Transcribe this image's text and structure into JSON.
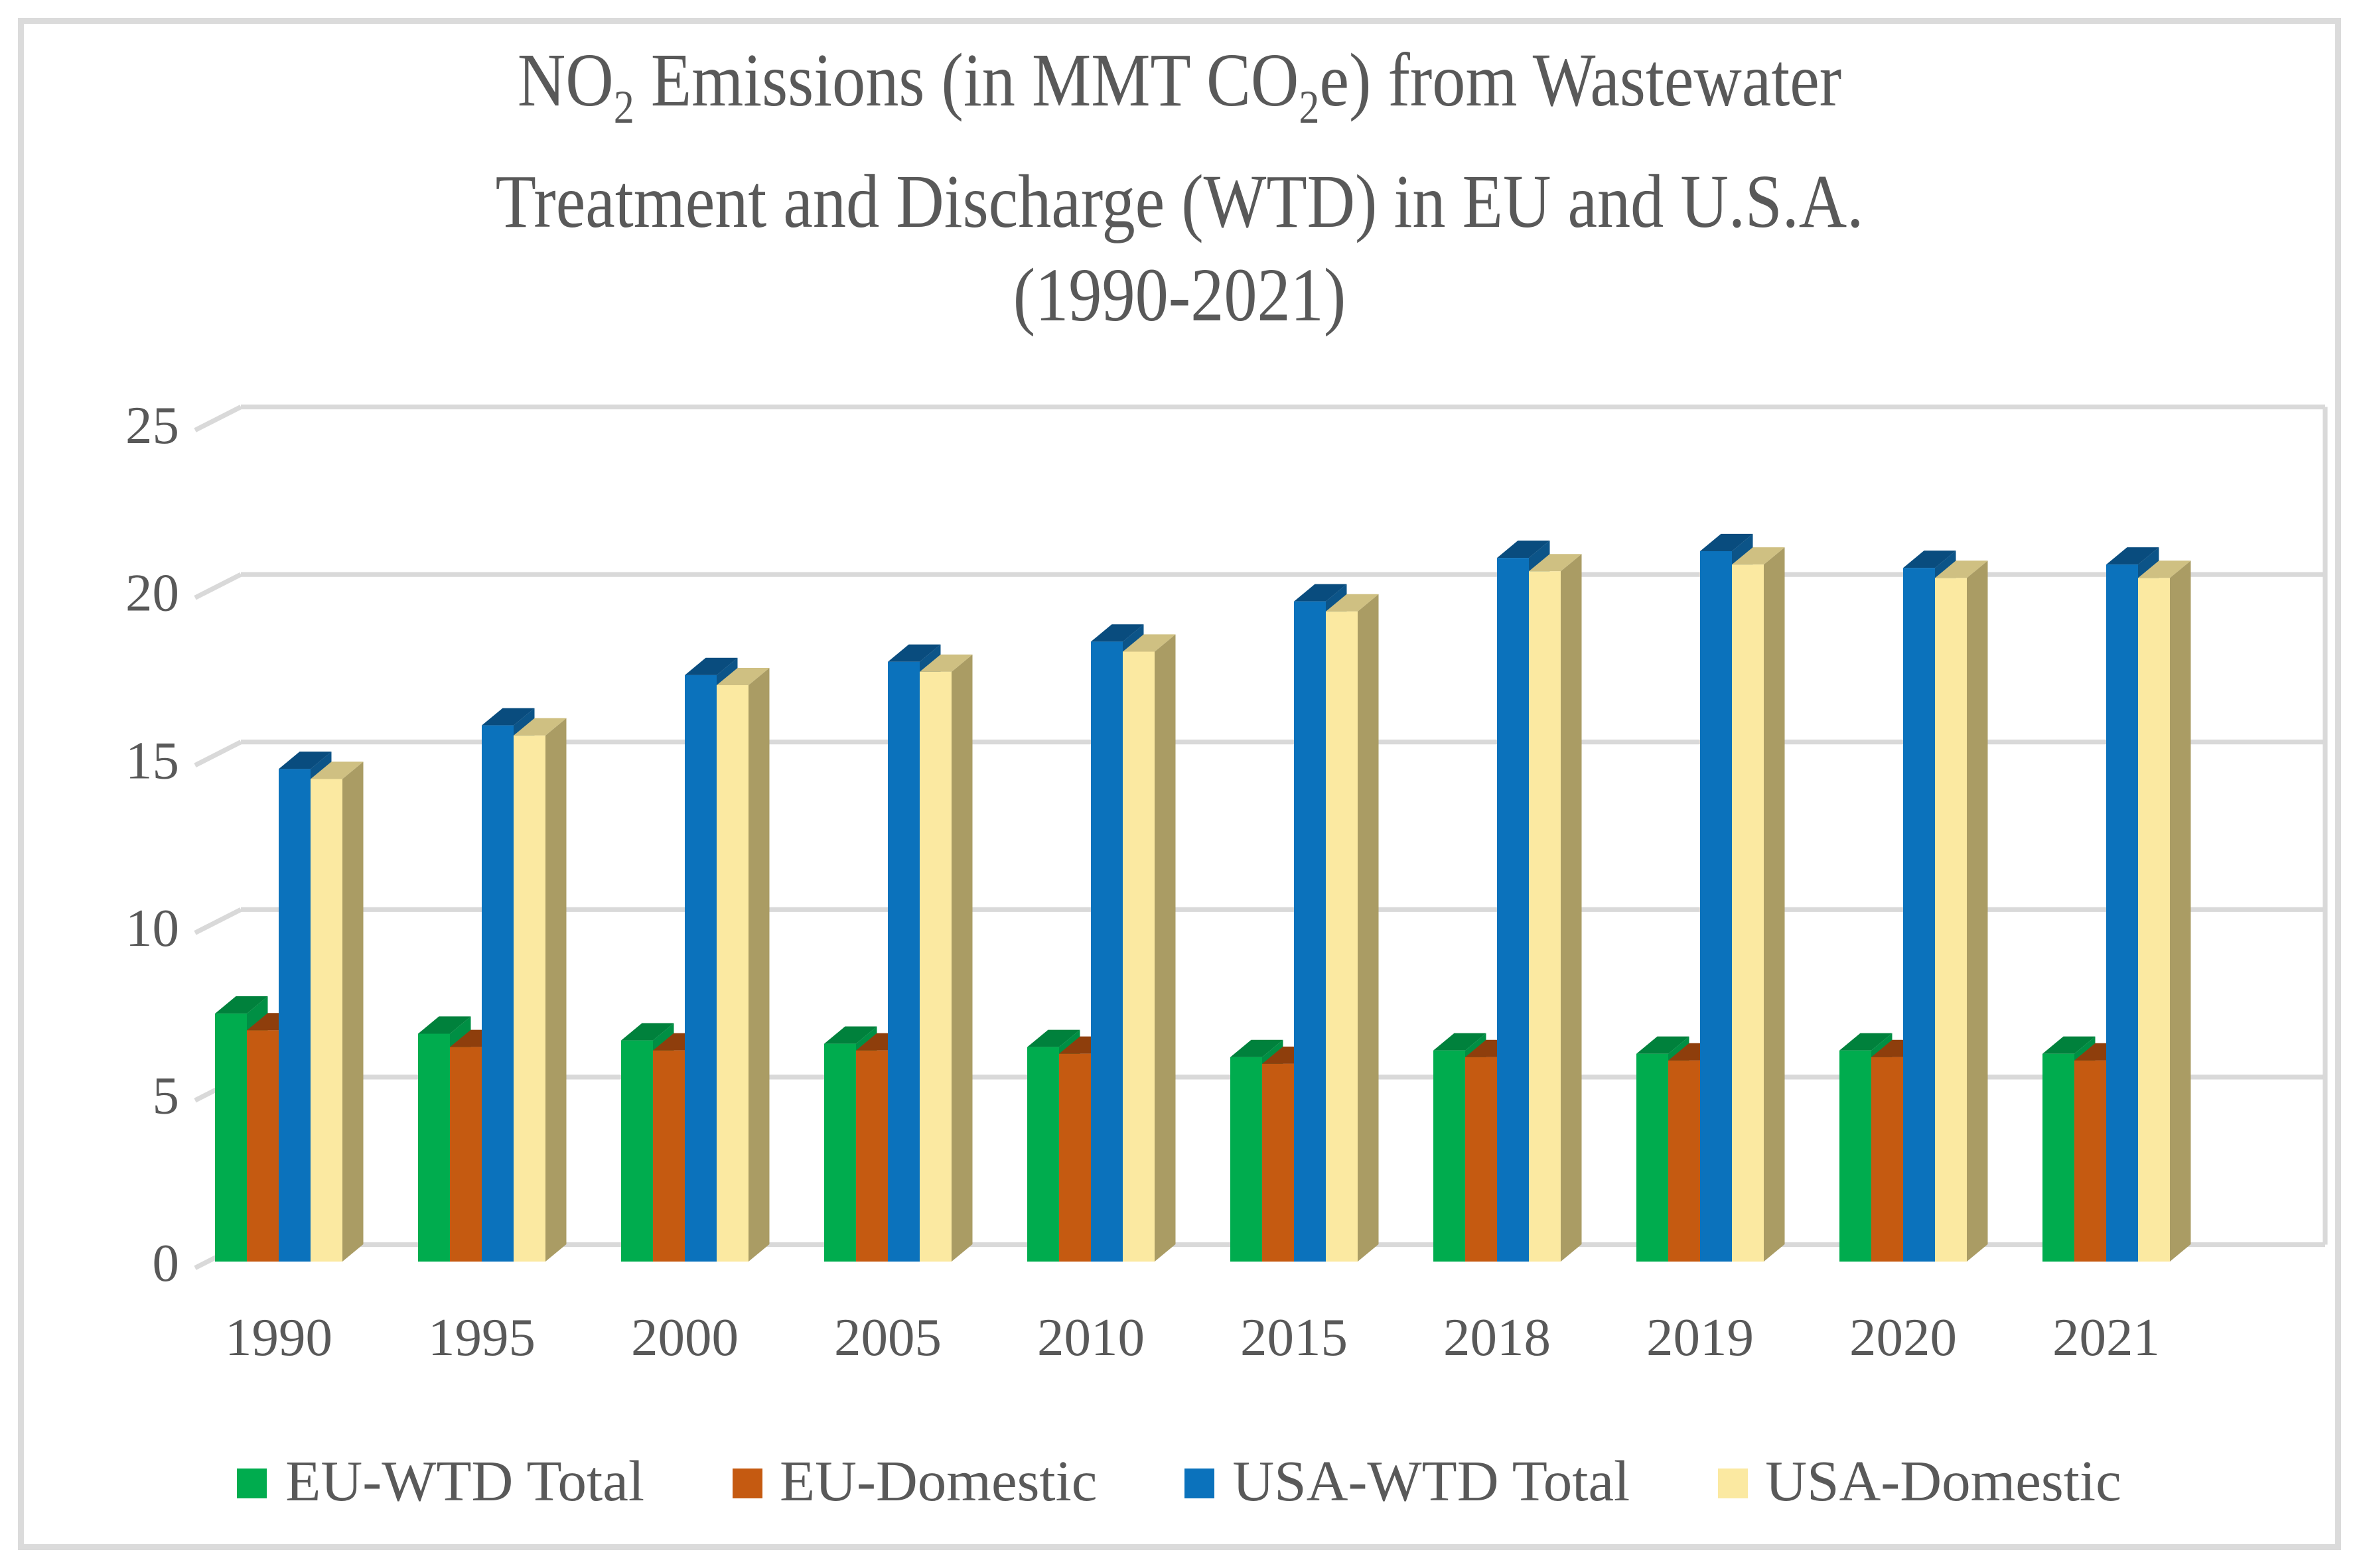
{
  "title": {
    "plain": "NO2 Emissions (in MMT CO2e) from Wastewater Treatment and Discharge (WTD) in EU and U.S.A. (1990-2021)",
    "lines": [
      [
        {
          "t": "NO"
        },
        {
          "t": "2",
          "sub": true
        },
        {
          "t": " Emissions (in MMT CO"
        },
        {
          "t": "2",
          "sub": true
        },
        {
          "t": "e) from Wastewater"
        }
      ],
      [
        {
          "t": "Treatment and Discharge (WTD) in EU and U.S.A."
        }
      ],
      [
        {
          "t": "(1990-2021)"
        }
      ]
    ],
    "color": "#595959"
  },
  "chart_data": {
    "type": "bar",
    "style": "3d-clustered-column",
    "title": "NO2 Emissions (in MMT CO2e) from Wastewater Treatment and Discharge (WTD) in EU and U.S.A. (1990-2021)",
    "categories": [
      "1990",
      "1995",
      "2000",
      "2005",
      "2010",
      "2015",
      "2018",
      "2019",
      "2020",
      "2021"
    ],
    "series": [
      {
        "name": "EU-WTD Total",
        "color": "#00AC4E",
        "top_color": "#00813C",
        "side_color": "#008F44",
        "values": [
          7.4,
          6.8,
          6.6,
          6.5,
          6.4,
          6.1,
          6.3,
          6.2,
          6.3,
          6.2
        ]
      },
      {
        "name": "EU-Domestic",
        "color": "#C55A11",
        "top_color": "#8E3E0C",
        "side_color": "#9D4A10",
        "values": [
          6.9,
          6.4,
          6.3,
          6.3,
          6.2,
          5.9,
          6.1,
          6.0,
          6.1,
          6.0
        ]
      },
      {
        "name": "USA-WTD Total",
        "color": "#0B72BC",
        "top_color": "#094C7E",
        "side_color": "#0C5488",
        "values": [
          14.7,
          16.0,
          17.5,
          17.9,
          18.5,
          19.7,
          21.0,
          21.2,
          20.7,
          20.8
        ]
      },
      {
        "name": "USA-Domestic",
        "color": "#FBE9A1",
        "top_color": "#CFC082",
        "side_color": "#AA9C64",
        "values": [
          14.4,
          15.7,
          17.2,
          17.6,
          18.2,
          19.4,
          20.6,
          20.8,
          20.4,
          20.4
        ]
      }
    ],
    "xlabel": "",
    "ylabel": "",
    "yticks": [
      0,
      5,
      10,
      15,
      20,
      25
    ],
    "ylim": [
      0,
      25
    ],
    "grid": true,
    "legend_position": "bottom",
    "text_color": "#595959",
    "gridline_color": "#D9D9D9",
    "border_color": "#DBDBDB",
    "background": "#FFFFFF"
  }
}
